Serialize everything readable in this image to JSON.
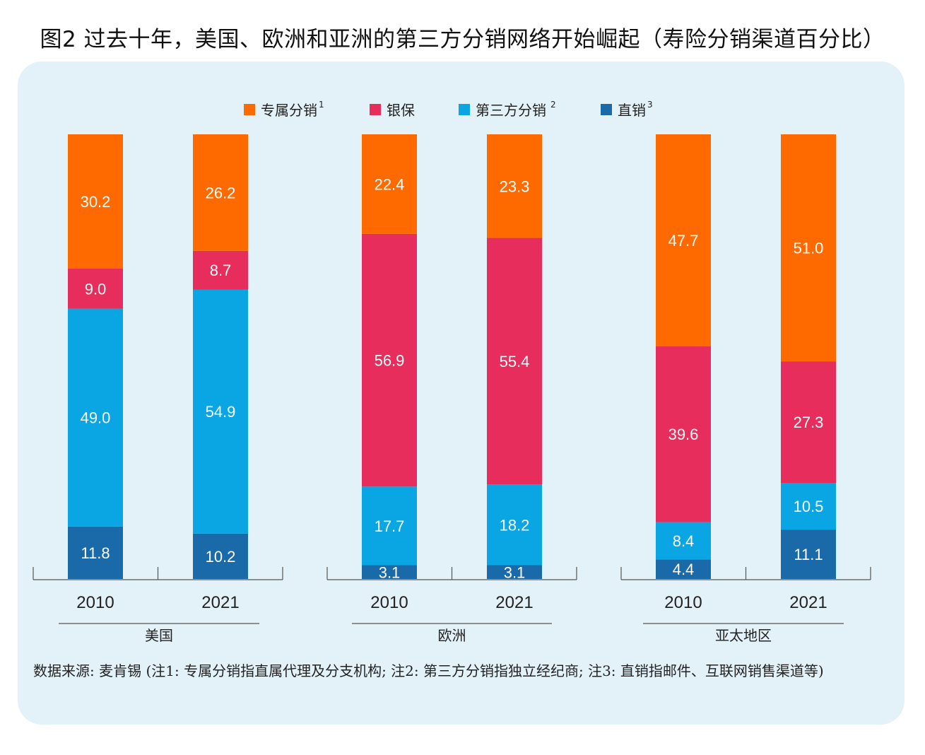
{
  "title": "图2  过去十年，美国、欧洲和亚洲的第三方分销网络开始崛起（寿险分销渠道百分比）",
  "source": "数据来源: 麦肯锡 (注1: 专属分销指直属代理及分支机构; 注2: 第三方分销指独立经纪商; 注3: 直销指邮件、互联网销售渠道等)",
  "colors": {
    "captive": "#ff6a00",
    "bancassurance": "#e62d5c",
    "third_party": "#0aa5e3",
    "direct": "#1a6aaa",
    "panel": "#e3f1f8"
  },
  "legend": [
    {
      "label": "专属分销",
      "sup": "1",
      "color": "#ff6a00"
    },
    {
      "label": "银保",
      "sup": "",
      "color": "#e62d5c"
    },
    {
      "label": "第三方分销",
      "sup": "2",
      "color": "#0aa5e3"
    },
    {
      "label": "直销",
      "sup": "3",
      "color": "#1a6aaa"
    }
  ],
  "chart_data": {
    "type": "bar",
    "stacked": true,
    "ylim": [
      0,
      100
    ],
    "groups": [
      {
        "region": "美国",
        "years": [
          "2010",
          "2021"
        ]
      },
      {
        "region": "欧洲",
        "years": [
          "2010",
          "2021"
        ]
      },
      {
        "region": "亚太地区",
        "years": [
          "2010",
          "2021"
        ]
      }
    ],
    "categories": [
      "2010",
      "2021",
      "2010",
      "2021",
      "2010",
      "2021"
    ],
    "series": [
      {
        "name": "直销",
        "color": "#1a6aaa",
        "values": [
          11.8,
          10.2,
          3.1,
          3.1,
          4.4,
          11.1
        ]
      },
      {
        "name": "第三方分销",
        "color": "#0aa5e3",
        "values": [
          49.0,
          54.9,
          17.7,
          18.2,
          8.4,
          10.5
        ]
      },
      {
        "name": "银保",
        "color": "#e62d5c",
        "values": [
          9.0,
          8.7,
          56.9,
          55.4,
          39.6,
          27.3
        ]
      },
      {
        "name": "专属分销",
        "color": "#ff6a00",
        "values": [
          30.2,
          26.2,
          22.4,
          23.3,
          47.7,
          51.0
        ]
      }
    ]
  }
}
